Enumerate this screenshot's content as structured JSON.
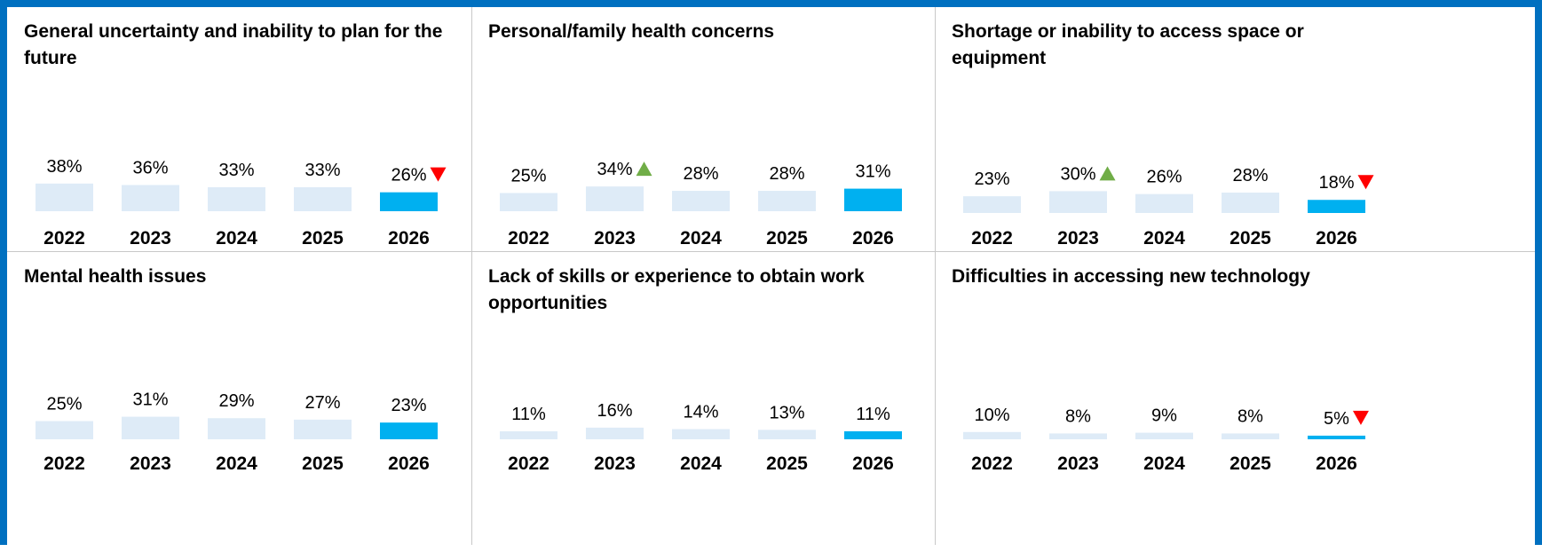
{
  "colors": {
    "frame": "#0070C0",
    "bar_past": "#DEEBF7",
    "bar_current": "#00B0F0",
    "arrow_up": "#70AD47",
    "arrow_down": "#FF0000"
  },
  "chart_data": [
    {
      "type": "bar",
      "title": "General uncertainty and inability to plan for the future",
      "categories": [
        "2022",
        "2023",
        "2024",
        "2025",
        "2026"
      ],
      "values": [
        38,
        36,
        33,
        33,
        26
      ],
      "value_labels": [
        "38%",
        "36%",
        "33%",
        "33%",
        "26%"
      ],
      "change_markers": [
        null,
        null,
        null,
        null,
        "down"
      ]
    },
    {
      "type": "bar",
      "title": "Personal/family health concerns",
      "categories": [
        "2022",
        "2023",
        "2024",
        "2025",
        "2026"
      ],
      "values": [
        25,
        34,
        28,
        28,
        31
      ],
      "value_labels": [
        "25%",
        "34%",
        "28%",
        "28%",
        "31%"
      ],
      "change_markers": [
        null,
        "up",
        null,
        null,
        null
      ]
    },
    {
      "type": "bar",
      "title": "Shortage or inability to access space or equipment",
      "categories": [
        "2022",
        "2023",
        "2024",
        "2025",
        "2026"
      ],
      "values": [
        23,
        30,
        26,
        28,
        18
      ],
      "value_labels": [
        "23%",
        "30%",
        "26%",
        "28%",
        "18%"
      ],
      "change_markers": [
        null,
        "up",
        null,
        null,
        "down"
      ]
    },
    {
      "type": "bar",
      "title": "Mental health issues",
      "categories": [
        "2022",
        "2023",
        "2024",
        "2025",
        "2026"
      ],
      "values": [
        25,
        31,
        29,
        27,
        23
      ],
      "value_labels": [
        "25%",
        "31%",
        "29%",
        "27%",
        "23%"
      ],
      "change_markers": [
        null,
        null,
        null,
        null,
        null
      ]
    },
    {
      "type": "bar",
      "title": "Lack of skills or experience to obtain work opportunities",
      "categories": [
        "2022",
        "2023",
        "2024",
        "2025",
        "2026"
      ],
      "values": [
        11,
        16,
        14,
        13,
        11
      ],
      "value_labels": [
        "11%",
        "16%",
        "14%",
        "13%",
        "11%"
      ],
      "change_markers": [
        null,
        null,
        null,
        null,
        null
      ]
    },
    {
      "type": "bar",
      "title": "Difficulties in accessing new technology",
      "categories": [
        "2022",
        "2023",
        "2024",
        "2025",
        "2026"
      ],
      "values": [
        10,
        8,
        9,
        8,
        5
      ],
      "value_labels": [
        "10%",
        "8%",
        "9%",
        "8%",
        "5%"
      ],
      "change_markers": [
        null,
        null,
        null,
        null,
        "down"
      ]
    }
  ]
}
